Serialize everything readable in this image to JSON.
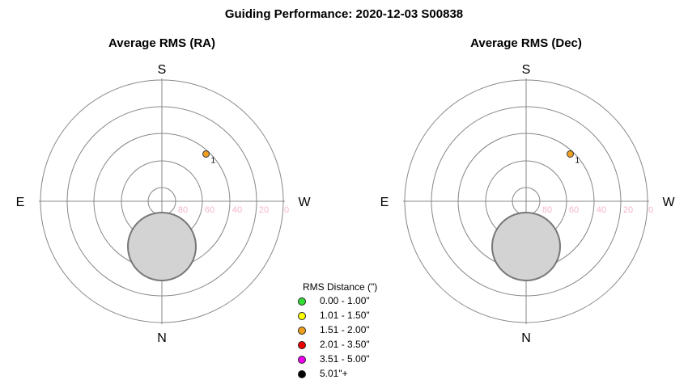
{
  "title": "Guiding Performance: 2020-12-03 S00838",
  "chart_data": [
    {
      "type": "polar-scatter",
      "title": "Average RMS (RA)",
      "compass": {
        "top": "S",
        "bottom": "N",
        "left": "E",
        "right": "W"
      },
      "ring_labels": [
        "80",
        "60",
        "40",
        "20",
        "0"
      ],
      "rings_altitude": [
        80,
        60,
        40,
        20,
        0
      ],
      "points": [
        {
          "label": "1",
          "azimuth": 137,
          "altitude": 42,
          "rms_class": "1.51 - 2.00\"",
          "color": "#f0a020"
        }
      ],
      "avg_circle": {
        "color": "#d3d3d3"
      }
    },
    {
      "type": "polar-scatter",
      "title": "Average RMS (Dec)",
      "compass": {
        "top": "S",
        "bottom": "N",
        "left": "E",
        "right": "W"
      },
      "ring_labels": [
        "80",
        "60",
        "40",
        "20",
        "0"
      ],
      "rings_altitude": [
        80,
        60,
        40,
        20,
        0
      ],
      "points": [
        {
          "label": "1",
          "azimuth": 137,
          "altitude": 42,
          "rms_class": "1.51 - 2.00\"",
          "color": "#f0a020"
        }
      ],
      "avg_circle": {
        "color": "#d3d3d3"
      }
    }
  ],
  "legend": {
    "title": "RMS Distance (\")",
    "items": [
      {
        "label": "0.00 - 1.00\"",
        "color": "#33dd33"
      },
      {
        "label": "1.01 - 1.50\"",
        "color": "#ffff00"
      },
      {
        "label": "1.51 - 2.00\"",
        "color": "#f0a020"
      },
      {
        "label": "2.01 - 3.50\"",
        "color": "#ee0000"
      },
      {
        "label": "3.51 - 5.00\"",
        "color": "#ee00ee"
      },
      {
        "label": "5.01\"+",
        "color": "#000000"
      }
    ]
  }
}
